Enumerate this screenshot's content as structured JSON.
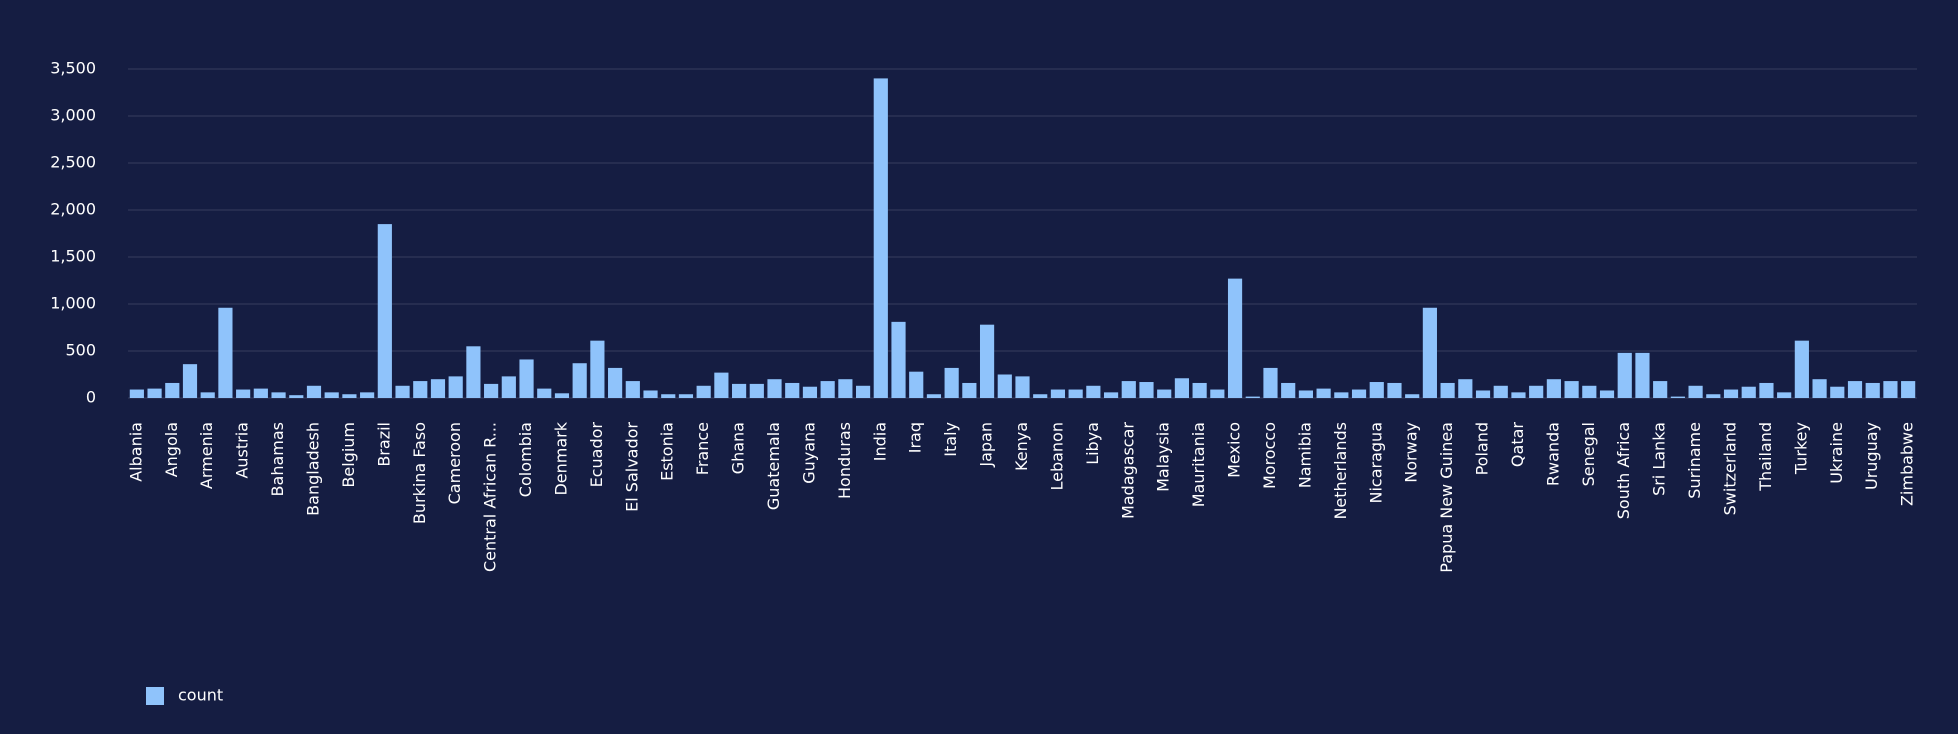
{
  "chart_data": {
    "type": "bar",
    "categories": [
      "Albania",
      null,
      "Angola",
      null,
      "Armenia",
      null,
      "Austria",
      null,
      "Bahamas",
      null,
      "Bangladesh",
      null,
      "Belgium",
      null,
      "Brazil",
      null,
      "Burkina Faso",
      null,
      "Cameroon",
      null,
      "Central African R...",
      null,
      "Colombia",
      null,
      "Denmark",
      null,
      "Ecuador",
      null,
      "El Salvador",
      null,
      "Estonia",
      null,
      "France",
      null,
      "Ghana",
      null,
      "Guatemala",
      null,
      "Guyana",
      null,
      "Honduras",
      null,
      "India",
      null,
      "Iraq",
      null,
      "Italy",
      null,
      "Japan",
      null,
      "Kenya",
      null,
      "Lebanon",
      null,
      "Libya",
      null,
      "Madagascar",
      null,
      "Malaysia",
      null,
      "Mauritania",
      null,
      "Mexico",
      null,
      "Morocco",
      null,
      "Namibia",
      null,
      "Netherlands",
      null,
      "Nicaragua",
      null,
      "Norway",
      null,
      "Papua New Guinea",
      null,
      "Poland",
      null,
      "Qatar",
      null,
      "Rwanda",
      null,
      "Senegal",
      null,
      "South Africa",
      null,
      "Sri Lanka",
      null,
      "Suriname",
      null,
      "Switzerland",
      null,
      "Thailand",
      null,
      "Turkey",
      null,
      "Ukraine",
      null,
      "Uruguay",
      null,
      "Zimbabwe"
    ],
    "series": [
      {
        "name": "count",
        "color": "#8fc3fb",
        "values": [
          90,
          100,
          160,
          360,
          60,
          960,
          90,
          100,
          60,
          30,
          130,
          60,
          40,
          60,
          1850,
          130,
          180,
          200,
          230,
          550,
          150,
          230,
          410,
          100,
          50,
          370,
          610,
          320,
          180,
          80,
          40,
          40,
          130,
          270,
          150,
          150,
          200,
          160,
          120,
          180,
          200,
          130,
          3400,
          810,
          280,
          40,
          320,
          160,
          780,
          250,
          230,
          40,
          90,
          90,
          130,
          60,
          180,
          170,
          90,
          210,
          160,
          90,
          1270,
          15,
          320,
          160,
          80,
          100,
          60,
          90,
          170,
          160,
          40,
          960,
          160,
          200,
          80,
          130,
          60,
          130,
          200,
          180,
          130,
          80,
          480,
          480,
          180,
          15,
          130,
          40,
          90,
          120,
          160,
          60,
          610,
          200,
          120,
          180,
          160,
          180,
          180
        ]
      }
    ],
    "ylim": [
      0,
      3500
    ],
    "yticks": [
      0,
      500,
      {
        "value": 1000,
        "label": "1,000"
      },
      {
        "value": 1500,
        "label": "1,500"
      },
      {
        "value": 2000,
        "label": "2,000"
      },
      {
        "value": 2500,
        "label": "2,500"
      },
      {
        "value": 3000,
        "label": "3,000"
      },
      {
        "value": 3500,
        "label": "3,500"
      }
    ],
    "grid": true,
    "legend": "bottom-left"
  }
}
